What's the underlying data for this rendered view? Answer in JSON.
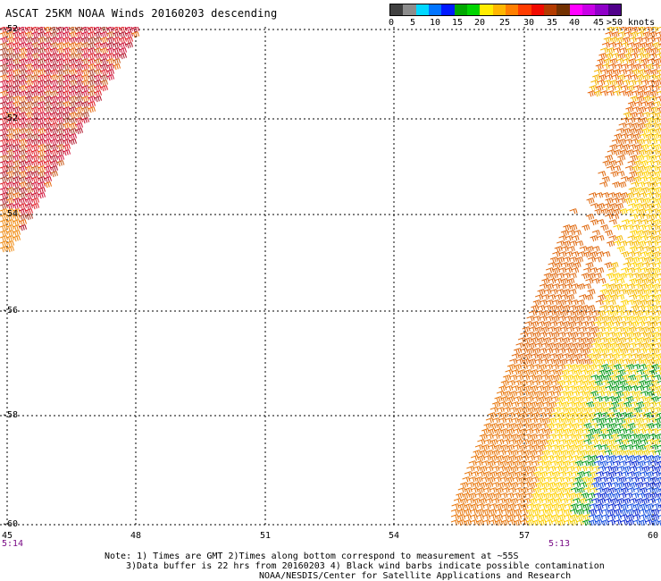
{
  "title": "ASCAT 25KM NOAA Winds 20160203 descending",
  "scale": {
    "colors": [
      "#404040",
      "#8c8c8c",
      "#00d7ff",
      "#0074ff",
      "#0019ff",
      "#00a800",
      "#00d400",
      "#ffec00",
      "#ffb600",
      "#ff7f00",
      "#ff3c00",
      "#f00a00",
      "#b33b00",
      "#733100",
      "#ff00ff",
      "#c800e6",
      "#8f00c8",
      "#50008a"
    ],
    "labels": [
      "0",
      "5",
      "10",
      "15",
      "20",
      "25",
      "30",
      "35",
      "40",
      "45",
      ">50 knots"
    ]
  },
  "map": {
    "lat_labels": [
      "-52",
      "-54",
      "-56",
      "-58",
      "-60"
    ],
    "lon_labels": [
      "45",
      "48",
      "51",
      "54",
      "57",
      "60"
    ],
    "time_left": "5:14",
    "time_right": "5:13"
  },
  "notes": {
    "line1": "Note: 1) Times are GMT 2)Times along bottom correspond to measurement at ~55S",
    "line2": "3)Data buffer is 22 hrs from 20160203 4) Black wind barbs indicate possible contamination",
    "line3": "NOAA/NESDIS/Center for Satellite Applications and Research"
  }
}
